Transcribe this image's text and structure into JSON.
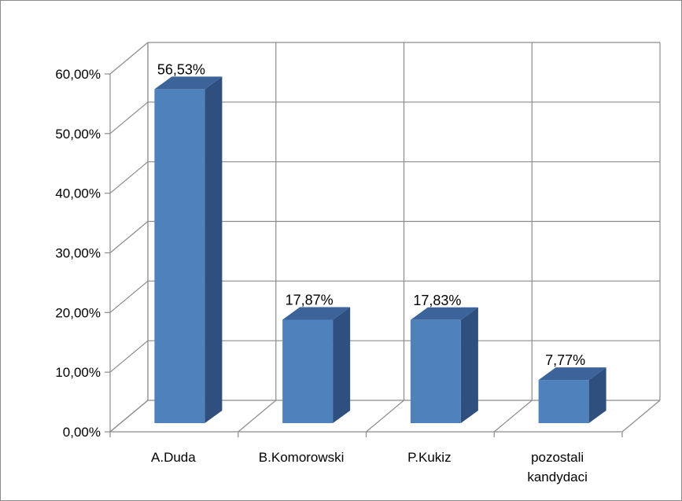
{
  "chart_data": {
    "type": "bar",
    "style": "3d-column",
    "categories": [
      "A.Duda",
      "B.Komorowski",
      "P.Kukiz",
      "pozostali kandydaci"
    ],
    "category_lines": [
      [
        "A.Duda"
      ],
      [
        "B.Komorowski"
      ],
      [
        "P.Kukiz"
      ],
      [
        "pozostali",
        "kandydaci"
      ]
    ],
    "values": [
      56.53,
      17.87,
      17.83,
      7.77
    ],
    "data_labels": [
      "56,53%",
      "17,87%",
      "17,83%",
      "7,77%"
    ],
    "y_ticks": [
      "0,00%",
      "10,00%",
      "20,00%",
      "30,00%",
      "40,00%",
      "50,00%",
      "60,00%"
    ],
    "ylim": [
      0,
      60
    ],
    "grid": true,
    "legend": "none",
    "title": "",
    "xlabel": "",
    "ylabel": "",
    "colors": {
      "front": "#4f81bd",
      "side": "#2f4f7f",
      "top": "#3c639a",
      "grid": "#8c8c8c"
    }
  }
}
